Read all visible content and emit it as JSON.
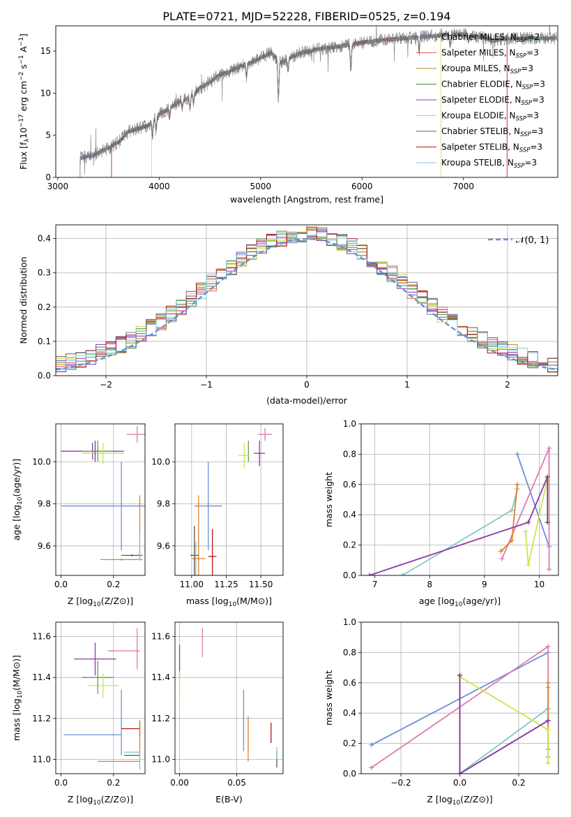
{
  "figure": {
    "title": "PLATE=0721, MJD=52228, FIBERID=0525, z=0.194",
    "colors": {
      "chabrier_miles": "#5b84c4",
      "salpeter_miles": "#e05a5a",
      "kroupa_miles": "#b08a10",
      "chabrier_elodie": "#3f8f3f",
      "salpeter_elodie": "#9030b8",
      "kroupa_elodie": "#c8d838",
      "chabrier_stelib": "#606060",
      "salpeter_stelib": "#b01818",
      "kroupa_stelib": "#74c8dc",
      "blue": "#6a8fd8",
      "orange": "#e07f2a",
      "pink": "#e07ab0",
      "purple": "#8a3aa8",
      "lime": "#cde44a",
      "teal": "#80c8c8",
      "green": "#5f9a5f",
      "olive": "#b0a030",
      "gray": "#555555"
    }
  },
  "chart_data": [
    {
      "id": "spectrum",
      "type": "line",
      "xlabel": "wavelength [Angstrom, rest frame]",
      "ylabel": "Flux [f_λ10^−17 erg cm^−2 s^−1 A^−1]",
      "xlim": [
        2980,
        7930
      ],
      "ylim": [
        0,
        18
      ],
      "xticks": [
        3000,
        4000,
        5000,
        6000,
        7000
      ],
      "yticks": [
        0,
        5,
        10,
        15
      ],
      "legend_position": "right",
      "legend": [
        {
          "label": "Chabrier MILES, N",
          "sub": "SSP",
          "suffix": "=2",
          "color_key": "chabrier_miles"
        },
        {
          "label": "Salpeter MILES, N",
          "sub": "SSP",
          "suffix": "=3",
          "color_key": "salpeter_miles"
        },
        {
          "label": "Kroupa MILES, N",
          "sub": "SSP",
          "suffix": "=3",
          "color_key": "kroupa_miles"
        },
        {
          "label": "Chabrier ELODIE, N",
          "sub": "SSP",
          "suffix": "=3",
          "color_key": "chabrier_elodie"
        },
        {
          "label": "Salpeter ELODIE, N",
          "sub": "SSP",
          "suffix": "=3",
          "color_key": "salpeter_elodie"
        },
        {
          "label": "Kroupa ELODIE, N",
          "sub": "SSP",
          "suffix": "=3",
          "color_key": "kroupa_elodie"
        },
        {
          "label": "Chabrier STELIB, N",
          "sub": "SSP",
          "suffix": "=3",
          "color_key": "chabrier_stelib"
        },
        {
          "label": "Salpeter STELIB, N",
          "sub": "SSP",
          "suffix": "=3",
          "color_key": "salpeter_stelib"
        },
        {
          "label": "Kroupa STELIB, N",
          "sub": "SSP",
          "suffix": "=3",
          "color_key": "kroupa_stelib"
        }
      ],
      "continuum": {
        "x": [
          3220,
          3350,
          3500,
          3600,
          3700,
          3800,
          3900,
          4000,
          4100,
          4200,
          4300,
          4400,
          4500,
          4600,
          4700,
          4800,
          4900,
          5000,
          5100,
          5200,
          5300,
          5400,
          5600,
          5800,
          6000,
          6200,
          6400,
          6600,
          6800,
          7000,
          7200,
          7300,
          7400
        ],
        "y": [
          2.3,
          2.6,
          3.5,
          4.2,
          5.5,
          5.8,
          6.2,
          7.5,
          8.2,
          9.0,
          9.5,
          10.6,
          11.3,
          12.2,
          12.6,
          13.2,
          13.6,
          14.2,
          14.8,
          13.6,
          14.3,
          14.8,
          15.3,
          15.6,
          16.0,
          16.3,
          16.5,
          16.7,
          16.9,
          17.0,
          16.6,
          16.2,
          16.5
        ]
      },
      "cutoffs": [
        {
          "color_key": "salpeter_miles",
          "start": 3530,
          "end": 7430
        },
        {
          "color_key": "kroupa_elodie",
          "start": 3925,
          "end": 6780
        },
        {
          "color_key": "salpeter_stelib",
          "start": 3530,
          "end": 7430
        }
      ]
    },
    {
      "id": "residual_hist",
      "type": "histogram",
      "xlabel": "(data-model)/error",
      "ylabel": "Normed distribution",
      "xlim": [
        -2.5,
        2.5
      ],
      "ylim": [
        0,
        0.44
      ],
      "xticks": [
        -2,
        -1,
        0,
        1,
        2
      ],
      "yticks": [
        0.0,
        0.1,
        0.2,
        0.3,
        0.4
      ],
      "grid": true,
      "bin_width": 0.1,
      "bin_start": -2.5,
      "legend_position": "top-right",
      "gaussian_label": "𝒩(0, 1)",
      "gaussian_color_key": "blue",
      "series_colors": [
        "chabrier_miles",
        "salpeter_miles",
        "kroupa_miles",
        "chabrier_elodie",
        "salpeter_elodie",
        "kroupa_elodie",
        "chabrier_stelib",
        "salpeter_stelib",
        "kroupa_stelib"
      ]
    },
    {
      "id": "age_vs_Z",
      "type": "errorbar",
      "xlabel": "Z [log10(Z/Z⊙)]",
      "ylabel": "age  [log10(age/yr)]",
      "xlim": [
        -0.02,
        0.32
      ],
      "ylim": [
        9.46,
        10.18
      ],
      "xticks": [
        0.0,
        0.2
      ],
      "yticks": [
        9.6,
        9.8,
        10.0
      ],
      "grid": true,
      "points": [
        {
          "color_key": "pink",
          "x": 0.29,
          "xerr": 0.04,
          "y": 10.13,
          "yerr": 0.04
        },
        {
          "color_key": "purple",
          "x": 0.12,
          "xerr": 0.12,
          "y": 10.05,
          "yerr": 0.04
        },
        {
          "color_key": "green",
          "x": 0.14,
          "xerr": 0.06,
          "y": 10.05,
          "yerr": 0.05
        },
        {
          "color_key": "lime",
          "x": 0.16,
          "xerr": 0.08,
          "y": 10.04,
          "yerr": 0.05
        },
        {
          "color_key": "gray",
          "x": 0.13,
          "xerr": 0.0,
          "y": 10.05,
          "yerr": 0.05
        },
        {
          "color_key": "blue",
          "x": 0.23,
          "xerr": 0.23,
          "y": 9.79,
          "yerr": 0.21
        },
        {
          "color_key": "orange",
          "x": 0.23,
          "xerr": 0.08,
          "y": 9.535,
          "yerr": 0.005
        },
        {
          "color_key": "orange",
          "x": 0.3,
          "xerr": 0.0,
          "y": 9.69,
          "yerr": 0.15
        },
        {
          "color_key": "gray",
          "x": 0.27,
          "xerr": 0.04,
          "y": 9.555,
          "yerr": 0.005
        },
        {
          "color_key": "teal",
          "x": 0.3,
          "xerr": 0.0,
          "y": 9.6,
          "yerr": 0.07
        }
      ]
    },
    {
      "id": "age_vs_mass",
      "type": "errorbar",
      "xlabel": "mass [log10(M/M⊙)]",
      "ylabel": "",
      "xlim": [
        10.88,
        11.66
      ],
      "ylim": [
        9.46,
        10.18
      ],
      "xticks": [
        11.0,
        11.25,
        11.5
      ],
      "yticks": [
        9.6,
        9.8,
        10.0
      ],
      "grid": true,
      "points": [
        {
          "color_key": "pink",
          "x": 11.53,
          "xerr": 0.05,
          "y": 10.13,
          "yerr": 0.03
        },
        {
          "color_key": "purple",
          "x": 11.49,
          "xerr": 0.04,
          "y": 10.04,
          "yerr": 0.06
        },
        {
          "color_key": "green",
          "x": 11.41,
          "xerr": 0.0,
          "y": 10.05,
          "yerr": 0.05
        },
        {
          "color_key": "lime",
          "x": 11.38,
          "xerr": 0.04,
          "y": 10.03,
          "yerr": 0.06
        },
        {
          "color_key": "blue",
          "x": 11.12,
          "xerr": 0.1,
          "y": 9.79,
          "yerr": 0.21
        },
        {
          "color_key": "orange",
          "x": 11.05,
          "xerr": 0.05,
          "y": 9.54,
          "yerr": 0.3
        },
        {
          "color_key": "gray",
          "x": 11.02,
          "xerr": 0.03,
          "y": 9.555,
          "yerr": 0.14
        },
        {
          "color_key": "salpeter_stelib",
          "x": 11.15,
          "xerr": 0.03,
          "y": 9.55,
          "yerr": 0.13
        },
        {
          "color_key": "teal",
          "x": 11.03,
          "xerr": 0.0,
          "y": 9.54,
          "yerr": 0.08
        }
      ]
    },
    {
      "id": "weight_vs_age",
      "type": "line",
      "xlabel": "age  [log10(age/yr)]",
      "ylabel": "mass weight",
      "xlim": [
        6.75,
        10.35
      ],
      "ylim": [
        0,
        1.0
      ],
      "xticks": [
        7,
        8,
        9,
        10
      ],
      "yticks": [
        0.0,
        0.2,
        0.4,
        0.6,
        0.8,
        1.0
      ],
      "grid": true,
      "series": [
        {
          "color_key": "blue",
          "x": [
            9.6,
            10.18
          ],
          "y": [
            0.8,
            0.19
          ]
        },
        {
          "color_key": "pink",
          "x": [
            9.32,
            10.18,
            10.18
          ],
          "y": [
            0.11,
            0.84,
            0.04
          ]
        },
        {
          "color_key": "teal",
          "x": [
            7.5,
            9.5,
            9.6
          ],
          "y": [
            0.0,
            0.43,
            0.57
          ]
        },
        {
          "color_key": "orange",
          "x": [
            9.3,
            9.5,
            9.6
          ],
          "y": [
            0.16,
            0.23,
            0.6
          ]
        },
        {
          "color_key": "lime",
          "x": [
            9.75,
            9.8,
            10.15
          ],
          "y": [
            0.29,
            0.07,
            0.64
          ]
        },
        {
          "color_key": "gray",
          "x": [
            10.15,
            10.15
          ],
          "y": [
            0.35,
            0.65
          ]
        },
        {
          "color_key": "purple",
          "x": [
            6.9,
            9.8,
            10.15
          ],
          "y": [
            0.0,
            0.35,
            0.65
          ]
        }
      ]
    },
    {
      "id": "mass_vs_Z",
      "type": "errorbar",
      "xlabel": "Z [log10(Z/Z⊙)]",
      "ylabel": "mass [log10(M/M⊙)]",
      "xlim": [
        -0.02,
        0.32
      ],
      "ylim": [
        10.93,
        11.67
      ],
      "xticks": [
        0.0,
        0.2
      ],
      "yticks": [
        11.0,
        11.2,
        11.4,
        11.6
      ],
      "grid": true,
      "points": [
        {
          "color_key": "pink",
          "x": 0.24,
          "xerr": 0.06,
          "y": 11.53,
          "yerr": 0.0
        },
        {
          "color_key": "pink",
          "x": 0.29,
          "xerr": 0.0,
          "y": 11.54,
          "yerr": 0.1
        },
        {
          "color_key": "purple",
          "x": 0.13,
          "xerr": 0.08,
          "y": 11.49,
          "yerr": 0.08
        },
        {
          "color_key": "green",
          "x": 0.14,
          "xerr": 0.06,
          "y": 11.4,
          "yerr": 0.08
        },
        {
          "color_key": "lime",
          "x": 0.16,
          "xerr": 0.06,
          "y": 11.36,
          "yerr": 0.06
        },
        {
          "color_key": "blue",
          "x": 0.12,
          "xerr": 0.11,
          "y": 11.12,
          "yerr": 0.0
        },
        {
          "color_key": "blue",
          "x": 0.23,
          "xerr": 0.0,
          "y": 11.18,
          "yerr": 0.16
        },
        {
          "color_key": "salpeter_stelib",
          "x": 0.265,
          "xerr": 0.035,
          "y": 11.15,
          "yerr": 0.0
        },
        {
          "color_key": "salpeter_stelib",
          "x": 0.3,
          "xerr": 0.0,
          "y": 11.15,
          "yerr": 0.04
        },
        {
          "color_key": "orange",
          "x": 0.22,
          "xerr": 0.08,
          "y": 10.99,
          "yerr": 0.0
        },
        {
          "color_key": "orange",
          "x": 0.3,
          "xerr": 0.0,
          "y": 11.1,
          "yerr": 0.09
        },
        {
          "color_key": "gray",
          "x": 0.27,
          "xerr": 0.03,
          "y": 11.02,
          "yerr": 0.0
        },
        {
          "color_key": "teal",
          "x": 0.27,
          "xerr": 0.03,
          "y": 11.035,
          "yerr": 0.0
        },
        {
          "color_key": "teal",
          "x": 0.3,
          "xerr": 0.0,
          "y": 11.0,
          "yerr": 0.05
        }
      ]
    },
    {
      "id": "mass_vs_ebv",
      "type": "errorbar",
      "xlabel": "E(B-V)",
      "ylabel": "",
      "xlim": [
        -0.004,
        0.0905
      ],
      "ylim": [
        10.93,
        11.67
      ],
      "xticks": [
        0.0,
        0.05
      ],
      "yticks": [
        11.0,
        11.2,
        11.4,
        11.6
      ],
      "grid": true,
      "points": [
        {
          "color_key": "pink",
          "x": 0.02,
          "xerr": 0.0,
          "y": 11.57,
          "yerr": 0.07
        },
        {
          "color_key": "purple",
          "x": 0.0,
          "xerr": 0.0,
          "y": 11.48,
          "yerr": 0.08
        },
        {
          "color_key": "lime",
          "x": 0.0,
          "xerr": 0.0,
          "y": 11.36,
          "yerr": 0.07
        },
        {
          "color_key": "blue",
          "x": 0.056,
          "xerr": 0.0,
          "y": 11.19,
          "yerr": 0.15
        },
        {
          "color_key": "orange",
          "x": 0.06,
          "xerr": 0.0,
          "y": 11.1,
          "yerr": 0.11
        },
        {
          "color_key": "salpeter_stelib",
          "x": 0.08,
          "xerr": 0.0,
          "y": 11.13,
          "yerr": 0.05
        },
        {
          "color_key": "gray",
          "x": 0.085,
          "xerr": 0.0,
          "y": 11.0,
          "yerr": 0.04
        },
        {
          "color_key": "teal",
          "x": 0.085,
          "xerr": 0.0,
          "y": 11.03,
          "yerr": 0.03
        }
      ]
    },
    {
      "id": "weight_vs_Z",
      "type": "line",
      "xlabel": "Z [log10(Z/Z⊙)]",
      "ylabel": "mass weight",
      "xlim": [
        -0.335,
        0.335
      ],
      "ylim": [
        0,
        1.0
      ],
      "xticks": [
        -0.2,
        0.0,
        0.2
      ],
      "yticks": [
        0.0,
        0.2,
        0.4,
        0.6,
        0.8,
        1.0
      ],
      "grid": true,
      "series": [
        {
          "color_key": "blue",
          "x": [
            -0.3,
            0.3
          ],
          "y": [
            0.19,
            0.8
          ]
        },
        {
          "color_key": "pink",
          "x": [
            -0.3,
            0.3,
            0.3
          ],
          "y": [
            0.04,
            0.84,
            0.11
          ]
        },
        {
          "color_key": "teal",
          "x": [
            0.0,
            0.3,
            0.3,
            0.3
          ],
          "y": [
            0.0,
            0.43,
            0.43,
            0.57
          ]
        },
        {
          "color_key": "orange",
          "x": [
            0.3,
            0.3
          ],
          "y": [
            0.16,
            0.6
          ]
        },
        {
          "color_key": "lime",
          "x": [
            0.0,
            0.3,
            0.3
          ],
          "y": [
            0.64,
            0.29,
            0.07
          ]
        },
        {
          "color_key": "gray",
          "x": [
            0.0,
            0.0,
            0.3
          ],
          "y": [
            0.65,
            0.0,
            0.35
          ]
        },
        {
          "color_key": "purple",
          "x": [
            0.0,
            0.0,
            0.3
          ],
          "y": [
            0.65,
            0.0,
            0.35
          ]
        }
      ]
    }
  ]
}
